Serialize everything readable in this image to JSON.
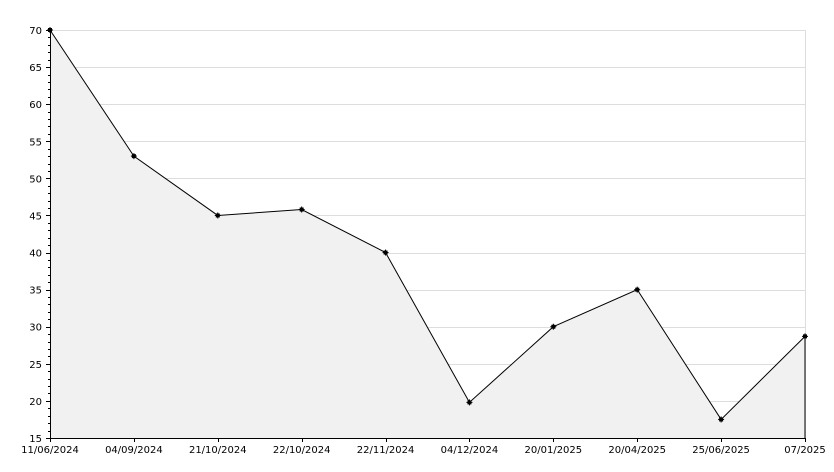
{
  "chart_data": {
    "type": "area",
    "title": "",
    "xlabel": "",
    "ylabel": "",
    "categories": [
      "11/06/2024",
      "04/09/2024",
      "21/10/2024",
      "22/10/2024",
      "22/11/2024",
      "04/12/2024",
      "20/01/2025",
      "20/04/2025",
      "25/06/2025",
      "07/2025"
    ],
    "values": [
      70,
      53,
      45,
      45.8,
      40,
      19.8,
      30,
      35,
      17.5,
      28.7
    ],
    "ylim": [
      15,
      70
    ],
    "yticks": [
      15,
      20,
      25,
      30,
      35,
      40,
      45,
      50,
      55,
      60,
      65,
      70
    ],
    "grid": true,
    "legend": "none",
    "colors": {
      "line": "#000000",
      "fill": "#f1f1f1",
      "grid": "#dddddd",
      "marker": "#000000",
      "axis": "#000000"
    }
  }
}
